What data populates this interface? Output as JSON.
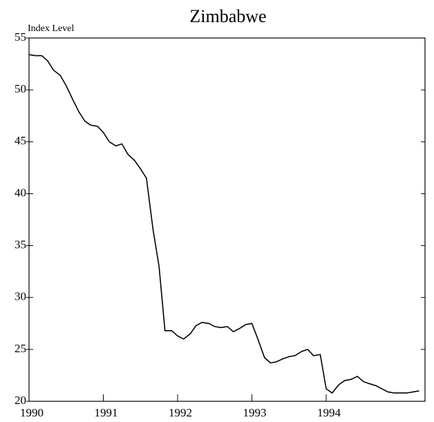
{
  "chart_data": {
    "type": "line",
    "title": "Zimbabwe",
    "y_label": "Index Level",
    "x": [
      1990.0,
      1990.08,
      1990.17,
      1990.25,
      1990.33,
      1990.42,
      1990.5,
      1990.58,
      1990.67,
      1990.75,
      1990.83,
      1990.92,
      1991.0,
      1991.08,
      1991.17,
      1991.25,
      1991.33,
      1991.42,
      1991.5,
      1991.58,
      1991.67,
      1991.75,
      1991.83,
      1991.92,
      1992.0,
      1992.08,
      1992.17,
      1992.25,
      1992.33,
      1992.42,
      1992.5,
      1992.58,
      1992.67,
      1992.75,
      1992.83,
      1992.92,
      1993.0,
      1993.08,
      1993.17,
      1993.25,
      1993.33,
      1993.42,
      1993.5,
      1993.58,
      1993.67,
      1993.75,
      1993.83,
      1993.92,
      1994.0,
      1994.08,
      1994.17,
      1994.25,
      1994.33,
      1994.42,
      1994.5,
      1994.58,
      1994.67,
      1994.75,
      1994.83,
      1994.92,
      1995.0,
      1995.08,
      1995.17,
      1995.25
    ],
    "series": [
      {
        "name": "Zimbabwe",
        "color": "#000000",
        "values": [
          53.4,
          53.3,
          53.3,
          52.8,
          51.9,
          51.4,
          50.4,
          49.2,
          47.9,
          47.0,
          46.6,
          46.5,
          45.9,
          45.0,
          44.6,
          44.8,
          43.8,
          43.2,
          42.4,
          41.5,
          36.5,
          33.0,
          26.8,
          26.8,
          26.3,
          26.0,
          26.5,
          27.3,
          27.6,
          27.5,
          27.2,
          27.1,
          27.2,
          26.7,
          27.0,
          27.4,
          27.5,
          26.0,
          24.2,
          23.7,
          23.8,
          24.1,
          24.3,
          24.4,
          24.8,
          25.0,
          24.4,
          24.5,
          21.2,
          20.8,
          21.6,
          22.0,
          22.1,
          22.4,
          21.9,
          21.7,
          21.5,
          21.2,
          20.9,
          20.8,
          20.8,
          20.8,
          20.9,
          21.0
        ]
      }
    ],
    "xlim": [
      1990,
      1995.33
    ],
    "xticks": [
      1990,
      1991,
      1992,
      1993,
      1994
    ],
    "ylim": [
      20,
      55
    ],
    "yticks": [
      20,
      25,
      30,
      35,
      40,
      45,
      50,
      55
    ],
    "grid": false
  }
}
